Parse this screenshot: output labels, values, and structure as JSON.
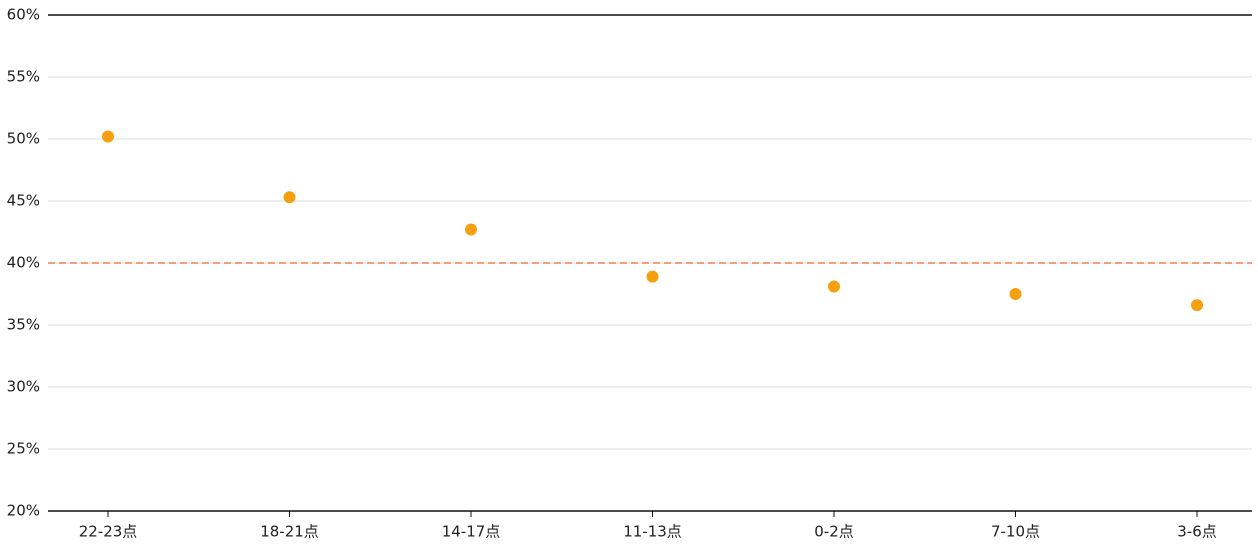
{
  "chart_data": {
    "type": "scatter",
    "categories": [
      "22-23点",
      "18-21点",
      "14-17点",
      "11-13点",
      "0-2点",
      "7-10点",
      "3-6点"
    ],
    "values": [
      50.2,
      45.3,
      42.7,
      38.9,
      38.1,
      37.5,
      36.6
    ],
    "color": "#f5a00f",
    "ylim": [
      20,
      60
    ],
    "yticks": [
      {
        "value": 20,
        "label": "20%"
      },
      {
        "value": 25,
        "label": "25%"
      },
      {
        "value": 30,
        "label": "30%"
      },
      {
        "value": 35,
        "label": "35%"
      },
      {
        "value": 40,
        "label": "40%"
      },
      {
        "value": 45,
        "label": "45%"
      },
      {
        "value": 50,
        "label": "50%"
      },
      {
        "value": 55,
        "label": "55%"
      },
      {
        "value": 60,
        "label": "60%"
      }
    ],
    "grid": true,
    "reference_line": {
      "value": 40,
      "color": "#f2a07e"
    }
  }
}
